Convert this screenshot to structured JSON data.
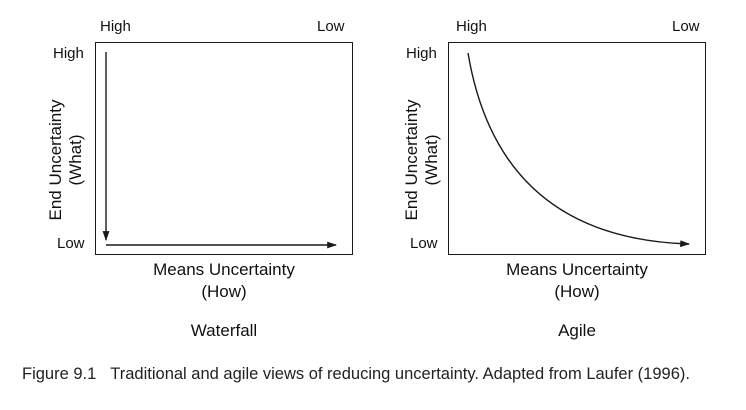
{
  "panels": [
    {
      "id": "waterfall",
      "title": "Waterfall",
      "x_axis_start": "High",
      "x_axis_end": "Low",
      "y_axis_top": "High",
      "y_axis_bottom": "Low",
      "y_label_line1": "End Uncertainty",
      "y_label_line2": "(What)",
      "x_label_line1": "Means Uncertainty",
      "x_label_line2": "(How)",
      "path": "right-angle: end uncertainty falls first, then means uncertainty"
    },
    {
      "id": "agile",
      "title": "Agile",
      "x_axis_start": "High",
      "x_axis_end": "Low",
      "y_axis_top": "High",
      "y_axis_bottom": "Low",
      "y_label_line1": "End Uncertainty",
      "y_label_line2": "(What)",
      "x_label_line1": "Means Uncertainty",
      "x_label_line2": "(How)",
      "path": "curve: both uncertainties fall together"
    }
  ],
  "caption": {
    "number": "Figure 9.1",
    "text": "Traditional and agile views of reducing uncertainty. Adapted from Laufer (1996)."
  },
  "colors": {
    "line": "#1a1a1a",
    "text": "#111111",
    "background": "#ffffff"
  }
}
